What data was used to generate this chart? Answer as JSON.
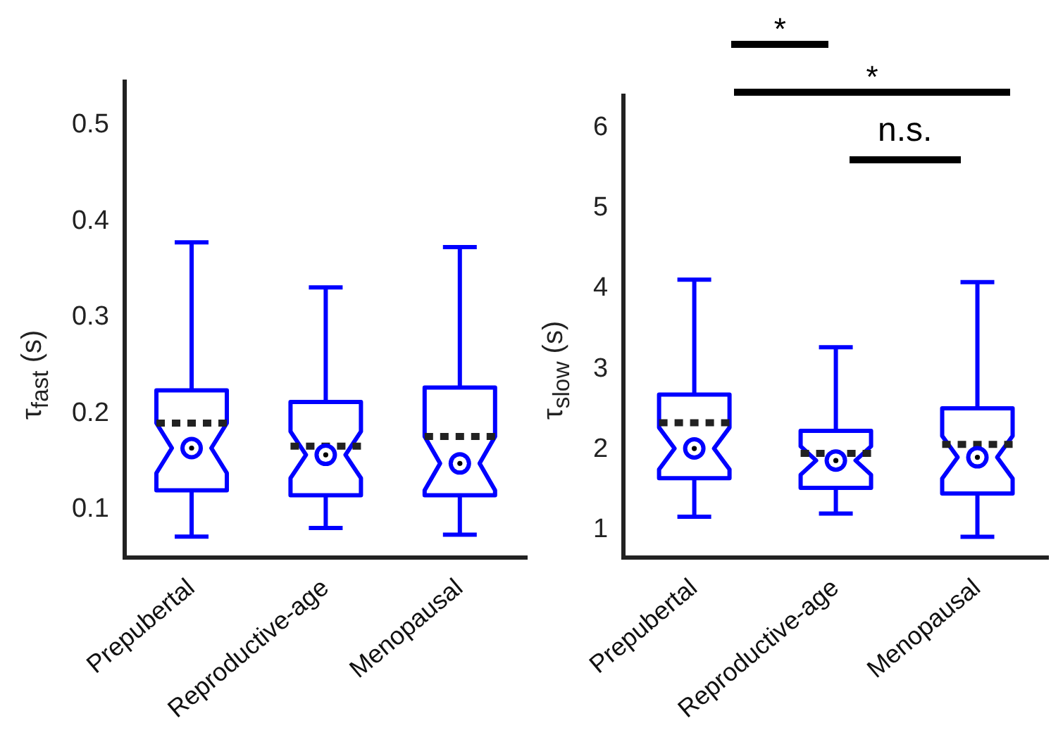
{
  "chart_data": [
    {
      "type": "box",
      "ylabel": "τ$_{fast}$ (s)",
      "categories": [
        "Prepubertal",
        "Reproductive-age",
        "Menopausal"
      ],
      "color": "#0000ff",
      "ylim": [
        0.05,
        0.545
      ],
      "yticks": [
        0.1,
        0.2,
        0.3,
        0.4,
        0.5
      ],
      "grid": false,
      "legend": false,
      "boxes": [
        {
          "low": 0.072,
          "q1": 0.12,
          "median": 0.164,
          "q3": 0.224,
          "high": 0.378,
          "mean": 0.19
        },
        {
          "low": 0.081,
          "q1": 0.115,
          "median": 0.157,
          "q3": 0.212,
          "high": 0.331,
          "mean": 0.166
        },
        {
          "low": 0.074,
          "q1": 0.115,
          "median": 0.148,
          "q3": 0.227,
          "high": 0.373,
          "mean": 0.176
        }
      ]
    },
    {
      "type": "box",
      "ylabel": "τ$_{slow}$ (s)",
      "categories": [
        "Prepubertal",
        "Reproductive-age",
        "Menopausal"
      ],
      "color": "#0000ff",
      "ylim": [
        0.65,
        6.4
      ],
      "yticks": [
        1,
        2,
        3,
        4,
        5,
        6
      ],
      "grid": false,
      "legend": false,
      "boxes": [
        {
          "low": 1.16,
          "q1": 1.64,
          "median": 2.01,
          "q3": 2.68,
          "high": 4.11,
          "mean": 2.33
        },
        {
          "low": 1.2,
          "q1": 1.52,
          "median": 1.86,
          "q3": 2.23,
          "high": 3.27,
          "mean": 1.95
        },
        {
          "low": 0.91,
          "q1": 1.45,
          "median": 1.9,
          "q3": 2.51,
          "high": 4.08,
          "mean": 2.06
        }
      ],
      "annotations": [
        "*",
        "*",
        "n.s."
      ]
    }
  ]
}
